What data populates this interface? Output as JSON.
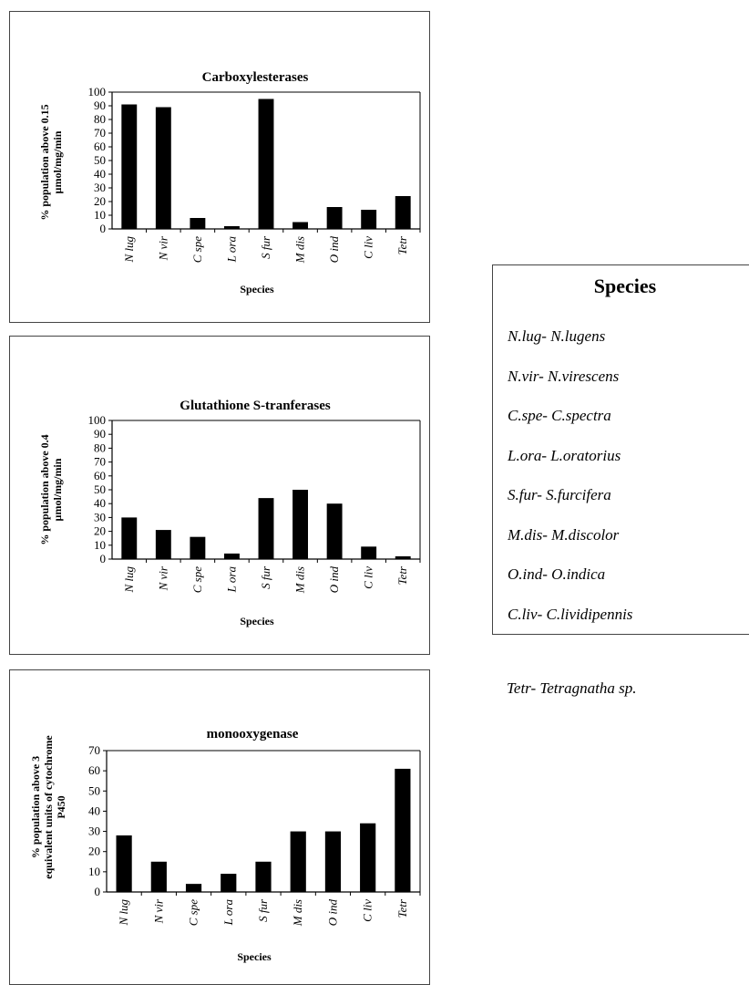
{
  "chart_data": [
    {
      "type": "bar",
      "title": "Carboxylesterases",
      "xlabel": "Species",
      "ylabel_lines": [
        "% population above 0.15",
        "µmol/mg/min"
      ],
      "ylim": [
        0,
        100
      ],
      "yticks": [
        0,
        10,
        20,
        30,
        40,
        50,
        60,
        70,
        80,
        90,
        100
      ],
      "categories": [
        "N lug",
        "N vir",
        "C spe",
        "L ora",
        "S fur",
        "M dis",
        "O ind",
        "C liv",
        "Tetr"
      ],
      "values": [
        91,
        89,
        8,
        2,
        95,
        5,
        16,
        14,
        24
      ],
      "bar_color": "#000000",
      "grid": false,
      "legend": "none"
    },
    {
      "type": "bar",
      "title": "Glutathione S-tranferases",
      "xlabel": "Species",
      "ylabel_lines": [
        "% population above 0.4",
        "µmol/mg/min"
      ],
      "ylim": [
        0,
        100
      ],
      "yticks": [
        0,
        10,
        20,
        30,
        40,
        50,
        60,
        70,
        80,
        90,
        100
      ],
      "categories": [
        "N lug",
        "N vir",
        "C spe",
        "L ora",
        "S fur",
        "M dis",
        "O ind",
        "C liv",
        "Tetr"
      ],
      "values": [
        30,
        21,
        16,
        4,
        44,
        50,
        40,
        9,
        2
      ],
      "bar_color": "#000000",
      "grid": false,
      "legend": "none"
    },
    {
      "type": "bar",
      "title": "monooxygenase",
      "xlabel": "Species",
      "ylabel_lines": [
        "% population above 3",
        "equivalent units of cytochrome",
        "P450"
      ],
      "ylim": [
        0,
        70
      ],
      "yticks": [
        0,
        10,
        20,
        30,
        40,
        50,
        60,
        70
      ],
      "categories": [
        "N lug",
        "N vir",
        "C spe",
        "L ora",
        "S fur",
        "M dis",
        "O ind",
        "C liv",
        "Tetr"
      ],
      "values": [
        28,
        15,
        4,
        9,
        15,
        30,
        30,
        34,
        61
      ],
      "bar_color": "#000000",
      "grid": false,
      "legend": "none"
    }
  ],
  "legend": {
    "title": "Species",
    "items": [
      "N.lug- N.lugens",
      "N.vir- N.virescens",
      "C.spe- C.spectra",
      "L.ora- L.oratorius",
      "S.fur- S.furcifera",
      "M.dis- M.discolor",
      "O.ind- O.indica",
      "C.liv- C.lividipennis",
      "Tetr- Tetragnatha sp."
    ]
  }
}
